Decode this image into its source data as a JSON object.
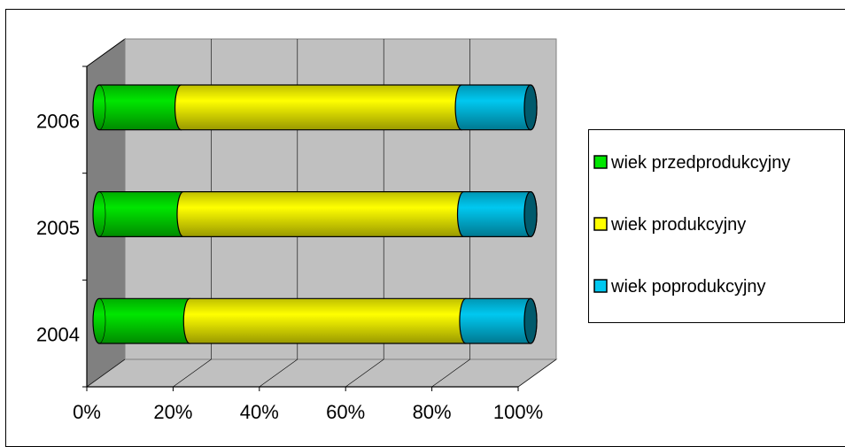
{
  "chart_data": {
    "type": "bar",
    "orientation": "horizontal",
    "stacked": "percent",
    "style": "3d-cylinder",
    "title": "",
    "xlabel": "",
    "ylabel": "",
    "categories": [
      "2004",
      "2005",
      "2006"
    ],
    "xlim": [
      0,
      100
    ],
    "x_ticks": [
      "0%",
      "20%",
      "40%",
      "60%",
      "80%",
      "100%"
    ],
    "grid": true,
    "legend_position": "right",
    "series": [
      {
        "name": "wiek przedprodukcyjny",
        "values": [
          21,
          19.5,
          19
        ],
        "color": "#00e600"
      },
      {
        "name": "wiek produkcyjny",
        "values": [
          64,
          65,
          65
        ],
        "color": "#ffff00"
      },
      {
        "name": "wiek poprodukcyjny",
        "values": [
          15,
          15.5,
          16
        ],
        "color": "#00c8f0"
      }
    ],
    "colors": {
      "plot_wall": "#c0c0c0",
      "side_wall": "#808080",
      "floor": "#c0c0c0",
      "axis": "#000000"
    }
  }
}
